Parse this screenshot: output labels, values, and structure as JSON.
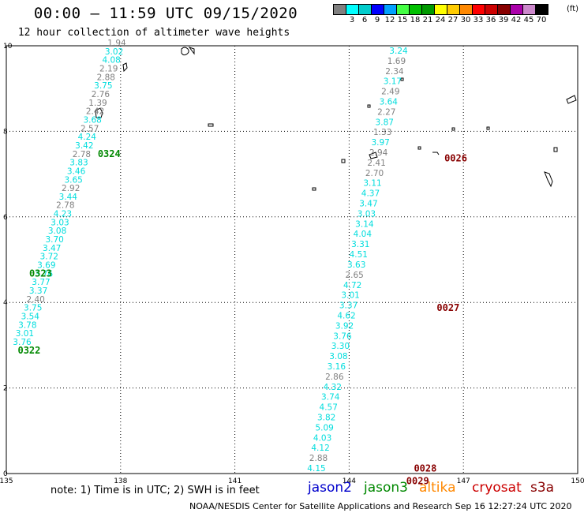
{
  "header": {
    "title": "00:00 – 11:59 UTC 09/15/2020",
    "subtitle": "12 hour collection of altimeter wave heights"
  },
  "legend": {
    "unit": "(ft)",
    "bins": [
      {
        "label": "",
        "color": "#808080"
      },
      {
        "label": "3",
        "color": "#00ffff"
      },
      {
        "label": "6",
        "color": "#00cccc"
      },
      {
        "label": "9",
        "color": "#0000ff"
      },
      {
        "label": "12",
        "color": "#00a0ff"
      },
      {
        "label": "15",
        "color": "#44ff44"
      },
      {
        "label": "18",
        "color": "#00c000"
      },
      {
        "label": "21",
        "color": "#009900"
      },
      {
        "label": "24",
        "color": "#ffff00"
      },
      {
        "label": "27",
        "color": "#ffcc00"
      },
      {
        "label": "30",
        "color": "#ff8800"
      },
      {
        "label": "33",
        "color": "#ff0000"
      },
      {
        "label": "36",
        "color": "#cc0000"
      },
      {
        "label": "39",
        "color": "#880000"
      },
      {
        "label": "42",
        "color": "#aa00aa"
      },
      {
        "label": "45",
        "color": "#cc88cc"
      },
      {
        "label": "70",
        "color": "#000000"
      }
    ]
  },
  "axes": {
    "x_ticks": [
      "135",
      "138",
      "141",
      "144",
      "147",
      "150"
    ],
    "y_ticks": [
      "0",
      "2",
      "4",
      "6",
      "8",
      "10"
    ],
    "x_range": [
      135,
      150
    ],
    "y_range": [
      0,
      10
    ]
  },
  "colors": {
    "low": "#00dddd",
    "mid": "#808080",
    "jason3": "#008800",
    "cryosat": "#880000"
  },
  "tracks": [
    {
      "name": "track-west",
      "points": [
        {
          "v": "1.94",
          "c": "mid"
        },
        {
          "v": "3.02",
          "c": "low"
        },
        {
          "v": "4.08",
          "c": "low"
        },
        {
          "v": "2.19",
          "c": "mid"
        },
        {
          "v": "2.88",
          "c": "mid"
        },
        {
          "v": "3.75",
          "c": "low"
        },
        {
          "v": "2.76",
          "c": "mid"
        },
        {
          "v": "1.39",
          "c": "mid"
        },
        {
          "v": "2.42",
          "c": "mid"
        },
        {
          "v": "3.68",
          "c": "low"
        },
        {
          "v": "2.57",
          "c": "mid"
        },
        {
          "v": "4.24",
          "c": "low"
        },
        {
          "v": "3.42",
          "c": "low"
        },
        {
          "v": "2.78",
          "c": "mid"
        },
        {
          "v": "3.83",
          "c": "low"
        },
        {
          "v": "3.46",
          "c": "low"
        },
        {
          "v": "3.65",
          "c": "low"
        },
        {
          "v": "2.92",
          "c": "mid"
        },
        {
          "v": "3.44",
          "c": "low"
        },
        {
          "v": "2.78",
          "c": "mid"
        },
        {
          "v": "4.23",
          "c": "low"
        },
        {
          "v": "3.03",
          "c": "low"
        },
        {
          "v": "3.08",
          "c": "low"
        },
        {
          "v": "3.70",
          "c": "low"
        },
        {
          "v": "3.47",
          "c": "low"
        },
        {
          "v": "3.72",
          "c": "low"
        },
        {
          "v": "3.69",
          "c": "low"
        },
        {
          "v": "3.76",
          "c": "low"
        },
        {
          "v": "3.77",
          "c": "low"
        },
        {
          "v": "3.37",
          "c": "low"
        },
        {
          "v": "2.40",
          "c": "mid"
        },
        {
          "v": "3.75",
          "c": "low"
        },
        {
          "v": "3.54",
          "c": "low"
        },
        {
          "v": "3.78",
          "c": "low"
        },
        {
          "v": "3.01",
          "c": "low"
        },
        {
          "v": "3.76",
          "c": "low"
        }
      ]
    },
    {
      "name": "track-east",
      "points": [
        {
          "v": "3.24",
          "c": "low"
        },
        {
          "v": "1.69",
          "c": "mid"
        },
        {
          "v": "2.34",
          "c": "mid"
        },
        {
          "v": "3.17",
          "c": "low"
        },
        {
          "v": "2.49",
          "c": "mid"
        },
        {
          "v": "3.64",
          "c": "low"
        },
        {
          "v": "2.27",
          "c": "mid"
        },
        {
          "v": "3.87",
          "c": "low"
        },
        {
          "v": "1.33",
          "c": "mid"
        },
        {
          "v": "3.97",
          "c": "low"
        },
        {
          "v": "2.94",
          "c": "mid"
        },
        {
          "v": "2.41",
          "c": "mid"
        },
        {
          "v": "2.70",
          "c": "mid"
        },
        {
          "v": "3.11",
          "c": "low"
        },
        {
          "v": "4.37",
          "c": "low"
        },
        {
          "v": "3.47",
          "c": "low"
        },
        {
          "v": "3.03",
          "c": "low"
        },
        {
          "v": "3.14",
          "c": "low"
        },
        {
          "v": "4.04",
          "c": "low"
        },
        {
          "v": "3.31",
          "c": "low"
        },
        {
          "v": "4.51",
          "c": "low"
        },
        {
          "v": "3.63",
          "c": "low"
        },
        {
          "v": "2.65",
          "c": "mid"
        },
        {
          "v": "4.72",
          "c": "low"
        },
        {
          "v": "3.01",
          "c": "low"
        },
        {
          "v": "3.37",
          "c": "low"
        },
        {
          "v": "4.62",
          "c": "low"
        },
        {
          "v": "3.92",
          "c": "low"
        },
        {
          "v": "3.76",
          "c": "low"
        },
        {
          "v": "3.30",
          "c": "low"
        },
        {
          "v": "3.08",
          "c": "low"
        },
        {
          "v": "3.16",
          "c": "low"
        },
        {
          "v": "2.86",
          "c": "mid"
        },
        {
          "v": "4.32",
          "c": "low"
        },
        {
          "v": "3.74",
          "c": "low"
        },
        {
          "v": "4.57",
          "c": "low"
        },
        {
          "v": "3.82",
          "c": "low"
        },
        {
          "v": "5.09",
          "c": "low"
        },
        {
          "v": "4.03",
          "c": "low"
        },
        {
          "v": "4.12",
          "c": "low"
        },
        {
          "v": "2.88",
          "c": "mid"
        },
        {
          "v": "4.15",
          "c": "low"
        }
      ]
    }
  ],
  "time_labels": [
    {
      "text": "0324",
      "c": "jason3",
      "lon": 137.4,
      "lat": 7.4
    },
    {
      "text": "0323",
      "c": "jason3",
      "lon": 135.6,
      "lat": 4.6
    },
    {
      "text": "0322",
      "c": "jason3",
      "lon": 135.3,
      "lat": 2.8
    },
    {
      "text": "0026",
      "c": "cryosat",
      "lon": 146.5,
      "lat": 7.3
    },
    {
      "text": "0027",
      "c": "cryosat",
      "lon": 146.3,
      "lat": 3.8
    },
    {
      "text": "0028",
      "c": "cryosat",
      "lon": 145.7,
      "lat": 0.05
    },
    {
      "text": "0029",
      "c": "cryosat",
      "lon": 145.5,
      "lat": -0.25
    }
  ],
  "footer": {
    "note": "note: 1) Time is in UTC; 2) SWH is in feet",
    "missions": [
      {
        "name": "jason2",
        "color": "#0000cc"
      },
      {
        "name": "jason3",
        "color": "#008800"
      },
      {
        "name": "altika",
        "color": "#ff8800"
      },
      {
        "name": "cryosat",
        "color": "#cc0000"
      },
      {
        "name": "s3a",
        "color": "#880000"
      }
    ],
    "credit": "NOAA/NESDIS Center for Satellite Applications and Research    Sep 16 12:27:24 UTC 2020"
  }
}
